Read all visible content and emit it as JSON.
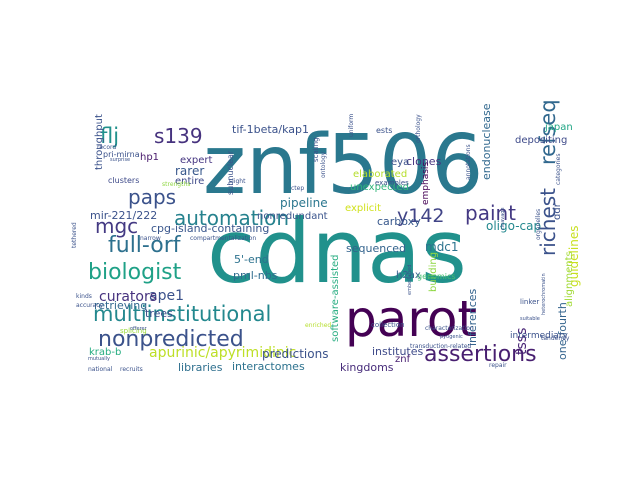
{
  "wordcloud": {
    "words": [
      {
        "text": "znf506",
        "color": "#2a788e"
      },
      {
        "text": "cdnas",
        "color": "#21918c"
      },
      {
        "text": "parot",
        "color": "#440154"
      },
      {
        "text": "assertions",
        "color": "#481f70"
      },
      {
        "text": "refseq",
        "color": "#31688e"
      },
      {
        "text": "richest",
        "color": "#3b528b"
      },
      {
        "text": "paint",
        "color": "#443983"
      },
      {
        "text": "multiinstitutional",
        "color": "#23888e"
      },
      {
        "text": "nonpredicted",
        "color": "#3b528b"
      },
      {
        "text": "full-orf",
        "color": "#2d708e"
      },
      {
        "text": "automation",
        "color": "#26828e"
      },
      {
        "text": "biologist",
        "color": "#1fa187"
      },
      {
        "text": "mgc",
        "color": "#443a83"
      },
      {
        "text": "paps",
        "color": "#3b528b"
      },
      {
        "text": "s139",
        "color": "#46327e"
      },
      {
        "text": "flj",
        "color": "#21918c"
      },
      {
        "text": "y142",
        "color": "#414487"
      },
      {
        "text": "apurinic/apyrimidinic",
        "color": "#bddf26"
      },
      {
        "text": "ape1",
        "color": "#3b528b"
      },
      {
        "text": "curators",
        "color": "#46327e"
      },
      {
        "text": "tsss",
        "color": "#482475"
      },
      {
        "text": "guidelines",
        "color": "#c8e020"
      },
      {
        "text": "alignments",
        "color": "#a2da37"
      },
      {
        "text": "one-fourth",
        "color": "#33638d"
      },
      {
        "text": "predictions",
        "color": "#3b528b"
      },
      {
        "text": "interactomes",
        "color": "#2c728e"
      },
      {
        "text": "libraries",
        "color": "#2e6f8e"
      },
      {
        "text": "kingdoms",
        "color": "#472c7a"
      },
      {
        "text": "institutes",
        "color": "#3e4a89"
      },
      {
        "text": "inferences",
        "color": "#33638d"
      },
      {
        "text": "oligo-cap",
        "color": "#23888e"
      },
      {
        "text": "carboxy",
        "color": "#38588c"
      },
      {
        "text": "mdc1",
        "color": "#2c738e"
      },
      {
        "text": "explicit",
        "color": "#d0e11c"
      },
      {
        "text": "software-assisted",
        "color": "#27ad81"
      },
      {
        "text": "sequenced",
        "color": "#33638d"
      },
      {
        "text": "pipeline",
        "color": "#2a768e"
      },
      {
        "text": "nonredundant",
        "color": "#3a548c"
      },
      {
        "text": "pml-nbs",
        "color": "#2f6c8e"
      },
      {
        "text": "5'-end",
        "color": "#2c728e"
      },
      {
        "text": "cpg-island-containing",
        "color": "#39568c"
      },
      {
        "text": "trees",
        "color": "#3d4d8a"
      },
      {
        "text": "retrieving",
        "color": "#31688e"
      },
      {
        "text": "mir-221/222",
        "color": "#3b528b"
      },
      {
        "text": "entire",
        "color": "#3e4989"
      },
      {
        "text": "expert",
        "color": "#453581"
      },
      {
        "text": "rarer",
        "color": "#38588c"
      },
      {
        "text": "tif-1beta/kap1",
        "color": "#3b528b"
      },
      {
        "text": "throughput",
        "color": "#3b528b"
      },
      {
        "text": "hp1",
        "color": "#481a6c"
      },
      {
        "text": "krab-b",
        "color": "#26ad81"
      },
      {
        "text": "clones",
        "color": "#46337f"
      },
      {
        "text": "endonuclease",
        "color": "#31688e"
      },
      {
        "text": "depositing",
        "color": "#3e4a89"
      },
      {
        "text": "japan",
        "color": "#21a685"
      },
      {
        "text": "eya",
        "color": "#3b528b"
      },
      {
        "text": "elaborated",
        "color": "#b5de2b"
      },
      {
        "text": "unexpected",
        "color": "#31b57b"
      },
      {
        "text": "building",
        "color": "#8fd744"
      },
      {
        "text": "emphasis",
        "color": "#440154"
      },
      {
        "text": "h2ax",
        "color": "#34618d"
      },
      {
        "text": "genomics",
        "color": "#44bf70"
      },
      {
        "text": "ddr",
        "color": "#3b528b"
      },
      {
        "text": "znf",
        "color": "#482071"
      },
      {
        "text": "intermediary",
        "color": "#3b528b"
      },
      {
        "text": "subnuclear",
        "color": "#3b528b"
      },
      {
        "text": "clusters",
        "color": "#3e4a89"
      },
      {
        "text": "splicing",
        "color": "#9bd93c"
      },
      {
        "text": "strengths",
        "color": "#90d743"
      },
      {
        "text": "pri-mirna",
        "color": "#3b528b"
      },
      {
        "text": "record",
        "color": "#3b528b"
      },
      {
        "text": "national",
        "color": "#3b528b"
      },
      {
        "text": "recruits",
        "color": "#3b528b"
      },
      {
        "text": "scaling",
        "color": "#3b528b"
      },
      {
        "text": "ests",
        "color": "#3b528b"
      },
      {
        "text": "examples",
        "color": "#3b528b"
      },
      {
        "text": "annotations",
        "color": "#3b528b"
      },
      {
        "text": "tandemly",
        "color": "#3b528b"
      },
      {
        "text": "linker",
        "color": "#3b528b"
      },
      {
        "text": "collection",
        "color": "#3b528b"
      },
      {
        "text": "enriched",
        "color": "#b5de2b"
      },
      {
        "text": "repair",
        "color": "#3b528b"
      },
      {
        "text": "kinds",
        "color": "#3b528b"
      },
      {
        "text": "accuracy",
        "color": "#3b528b"
      },
      {
        "text": "offerer",
        "color": "#3b528b"
      },
      {
        "text": "slight",
        "color": "#3b528b"
      },
      {
        "text": "tethered",
        "color": "#3b528b"
      },
      {
        "text": "uniform",
        "color": "#3b528b"
      },
      {
        "text": "ontology",
        "color": "#3b528b"
      },
      {
        "text": "cleavage",
        "color": "#3b528b"
      },
      {
        "text": "organelles",
        "color": "#3b528b"
      },
      {
        "text": "categories",
        "color": "#3b528b"
      },
      {
        "text": "embellished",
        "color": "#3b528b"
      },
      {
        "text": "compartmentalization",
        "color": "#3b528b"
      },
      {
        "text": "narrow",
        "color": "#3b528b"
      },
      {
        "text": "surprise",
        "color": "#3b528b"
      },
      {
        "text": "ctep",
        "color": "#3b528b"
      },
      {
        "text": "characterization",
        "color": "#3b528b"
      },
      {
        "text": "transduction-related",
        "color": "#3b528b"
      },
      {
        "text": "pyogenic",
        "color": "#3b528b"
      },
      {
        "text": "heterochromatin",
        "color": "#3b528b"
      },
      {
        "text": "suitable",
        "color": "#3b528b"
      },
      {
        "text": "mutually",
        "color": "#3b528b"
      },
      {
        "text": "orthology",
        "color": "#3b528b"
      }
    ]
  }
}
